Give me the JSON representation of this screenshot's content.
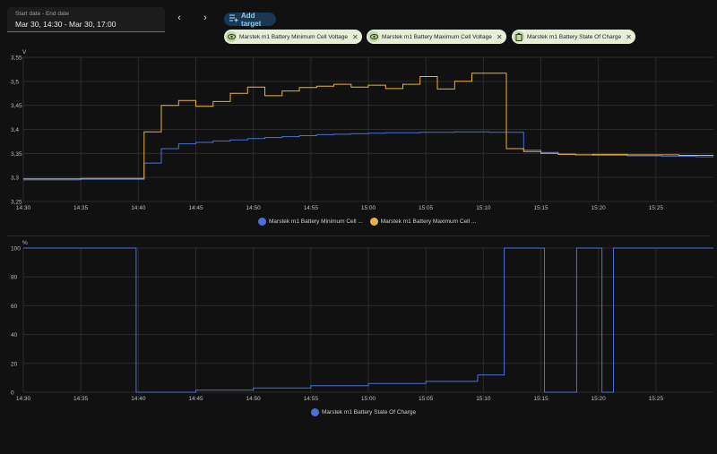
{
  "date_picker": {
    "label": "Start date - End date",
    "value": "Mar 30, 14:30 - Mar 30, 17:00"
  },
  "nav": {
    "prev": "‹",
    "next": "›"
  },
  "add_target": {
    "label": "Add target",
    "icon": "playlist-plus-icon"
  },
  "targets": [
    {
      "label": "Marstek m1 Battery Minimum Cell Voltage",
      "icon": "eye-icon"
    },
    {
      "label": "Marstek m1 Battery Maximum Cell Voltage",
      "icon": "eye-icon"
    },
    {
      "label": "Marstek m1 Battery State Of Charge",
      "icon": "battery-icon"
    }
  ],
  "colors": {
    "min_voltage": "#4b6fd8",
    "max_voltage": "#e7b23d",
    "soc": "#4b6fd8",
    "grid": "#2b2b2b",
    "axis_text": "#bdbdbd"
  },
  "chart_data": [
    {
      "type": "line",
      "step": true,
      "unit": "V",
      "x_unit": "minutes after 14:30",
      "xlim": [
        0,
        60
      ],
      "ylim": [
        3.25,
        3.55
      ],
      "x_ticks": [
        "14:30",
        "14:35",
        "14:40",
        "14:45",
        "14:50",
        "14:55",
        "15:00",
        "15:05",
        "15:10",
        "15:15",
        "15:20",
        "15:25"
      ],
      "y_ticks": [
        "3,25",
        "3,3",
        "3,35",
        "3,4",
        "3,45",
        "3,5",
        "3,55"
      ],
      "y_tick_values": [
        3.25,
        3.3,
        3.35,
        3.4,
        3.45,
        3.5,
        3.55
      ],
      "grid": true,
      "legend_position": "bottom-center",
      "series": [
        {
          "name": "Marstek m1 Battery Minimum Cell Voltage",
          "legend_label": "Marstek m1 Battery Minimum Cell ...",
          "color": "#4b6fd8",
          "x": [
            0,
            5,
            10.5,
            12,
            13.5,
            15,
            16.5,
            18,
            19.5,
            21,
            22.5,
            24,
            25.5,
            27,
            28.5,
            30,
            31.5,
            33,
            34.5,
            36,
            37.5,
            39,
            40.5,
            42,
            43.5,
            45,
            46.5,
            48,
            49.5,
            51,
            52.5,
            54,
            55.5,
            57,
            58.5,
            60
          ],
          "y": [
            3.295,
            3.296,
            3.33,
            3.36,
            3.37,
            3.373,
            3.376,
            3.378,
            3.381,
            3.383,
            3.385,
            3.387,
            3.389,
            3.39,
            3.391,
            3.392,
            3.393,
            3.393,
            3.394,
            3.394,
            3.395,
            3.395,
            3.394,
            3.394,
            3.357,
            3.352,
            3.349,
            3.347,
            3.346,
            3.346,
            3.345,
            3.345,
            3.344,
            3.344,
            3.343,
            3.343
          ]
        },
        {
          "name": "Marstek m1 Battery Maximum Cell Voltage",
          "legend_label": "Marstek m1 Battery Maximum Cell ...",
          "color": "#e7b23d",
          "x": [
            0,
            5,
            10.5,
            12,
            13.5,
            15,
            16.5,
            18,
            19.5,
            21,
            22.5,
            24,
            25.5,
            27,
            28.5,
            30,
            31.5,
            33,
            34.5,
            36,
            37.5,
            39,
            40.5,
            42,
            43.5,
            45,
            46.5,
            48,
            49.5,
            51,
            52.5,
            54,
            55.5,
            57,
            58.5,
            60
          ],
          "y": [
            3.297,
            3.298,
            3.395,
            3.45,
            3.46,
            3.448,
            3.458,
            3.475,
            3.488,
            3.47,
            3.48,
            3.487,
            3.49,
            3.494,
            3.488,
            3.492,
            3.485,
            3.494,
            3.51,
            3.484,
            3.5,
            3.517,
            3.517,
            3.36,
            3.354,
            3.35,
            3.348,
            3.347,
            3.348,
            3.348,
            3.347,
            3.347,
            3.347,
            3.346,
            3.346,
            3.346
          ]
        }
      ]
    },
    {
      "type": "line",
      "step": true,
      "unit": "%",
      "x_unit": "minutes after 14:30",
      "xlim": [
        0,
        60
      ],
      "ylim": [
        0,
        100
      ],
      "x_ticks": [
        "14:30",
        "14:35",
        "14:40",
        "14:45",
        "14:50",
        "14:55",
        "15:00",
        "15:05",
        "15:10",
        "15:15",
        "15:20",
        "15:25"
      ],
      "y_ticks": [
        "0",
        "20",
        "40",
        "60",
        "80",
        "100"
      ],
      "y_tick_values": [
        0,
        20,
        40,
        60,
        80,
        100
      ],
      "grid": true,
      "legend_position": "bottom-center",
      "series": [
        {
          "name": "Marstek m1 Battery State Of Charge",
          "legend_label": "Marstek m1 Battery State Of Charge",
          "color": "#4b6fd8",
          "x": [
            0,
            9.8,
            9.81,
            15,
            20,
            25,
            30,
            35,
            39.5,
            39.51,
            41.8,
            41.81,
            45.3,
            45.31,
            48.1,
            48.11,
            50.3,
            50.31,
            51.3,
            51.31,
            60
          ],
          "y": [
            100,
            100,
            0,
            1.5,
            3,
            4.5,
            6,
            7.5,
            9,
            12,
            12,
            100,
            100,
            0,
            0,
            100,
            100,
            0,
            0,
            100,
            100
          ]
        }
      ]
    }
  ]
}
